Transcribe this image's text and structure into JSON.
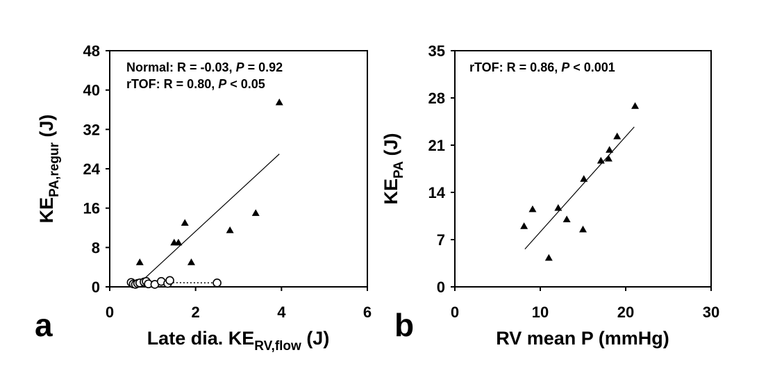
{
  "chart_data": [
    {
      "type": "scatter",
      "panel_label": "a",
      "xlabel": {
        "main": "Late dia. KE",
        "sub": "RV,flow",
        "unit": " (J)"
      },
      "ylabel": {
        "main": "KE",
        "sub": "PA,regur",
        "unit": " (J)"
      },
      "xlim": [
        0,
        6
      ],
      "ylim": [
        0,
        48
      ],
      "x_ticks": [
        "0",
        "2",
        "4",
        "6"
      ],
      "y_ticks": [
        "0",
        "8",
        "16",
        "24",
        "32",
        "40",
        "48"
      ],
      "grid": false,
      "annotations": [
        {
          "label": "Normal: R = -0.03, ",
          "p_label": "P",
          "p_value": " = 0.92"
        },
        {
          "label": "rTOF: R = 0.80, ",
          "p_label": "P",
          "p_value": " < 0.05"
        }
      ],
      "series": [
        {
          "marker": "triangle-filled",
          "points": [
            [
              0.7,
              5.0
            ],
            [
              1.5,
              9.0
            ],
            [
              1.6,
              9.0
            ],
            [
              1.75,
              13.0
            ],
            [
              1.9,
              5.0
            ],
            [
              2.8,
              11.5
            ],
            [
              3.4,
              15.0
            ],
            [
              3.95,
              37.5
            ]
          ],
          "fit": {
            "style": "solid",
            "x": [
              0.6,
              3.95
            ],
            "y": [
              0.0,
              27.0
            ]
          }
        },
        {
          "marker": "circle-open",
          "points": [
            [
              0.5,
              0.9
            ],
            [
              0.55,
              0.6
            ],
            [
              0.6,
              0.5
            ],
            [
              0.65,
              0.7
            ],
            [
              0.7,
              0.8
            ],
            [
              0.8,
              1.0
            ],
            [
              0.85,
              1.1
            ],
            [
              0.9,
              0.6
            ],
            [
              1.05,
              0.5
            ],
            [
              1.2,
              1.1
            ],
            [
              1.35,
              0.7
            ],
            [
              1.4,
              1.3
            ],
            [
              2.5,
              0.8
            ]
          ],
          "fit": {
            "style": "dotted",
            "x": [
              0.5,
              2.5
            ],
            "y": [
              0.9,
              0.8
            ]
          }
        }
      ]
    },
    {
      "type": "scatter",
      "panel_label": "b",
      "xlabel": {
        "main": "RV mean P (mmHg)",
        "sub": "",
        "unit": ""
      },
      "ylabel": {
        "main": "KE",
        "sub": "PA",
        "unit": " (J)"
      },
      "xlim": [
        0,
        30
      ],
      "ylim": [
        0,
        35
      ],
      "x_ticks": [
        "0",
        "10",
        "20",
        "30"
      ],
      "y_ticks": [
        "0",
        "7",
        "14",
        "21",
        "28",
        "35"
      ],
      "grid": false,
      "annotations": [
        {
          "label": "rTOF: R = 0.86, ",
          "p_label": "P",
          "p_value": " < 0.001"
        }
      ],
      "series": [
        {
          "marker": "triangle-filled",
          "points": [
            [
              8.1,
              9.0
            ],
            [
              9.1,
              11.5
            ],
            [
              11.0,
              4.3
            ],
            [
              12.1,
              11.7
            ],
            [
              13.1,
              10.0
            ],
            [
              15.0,
              8.5
            ],
            [
              15.1,
              16.0
            ],
            [
              17.1,
              18.7
            ],
            [
              18.0,
              19.0
            ],
            [
              18.1,
              20.3
            ],
            [
              19.0,
              22.3
            ],
            [
              21.1,
              26.8
            ]
          ],
          "fit": {
            "style": "solid",
            "x": [
              8.2,
              21.0
            ],
            "y": [
              5.6,
              23.7
            ]
          }
        }
      ]
    }
  ]
}
